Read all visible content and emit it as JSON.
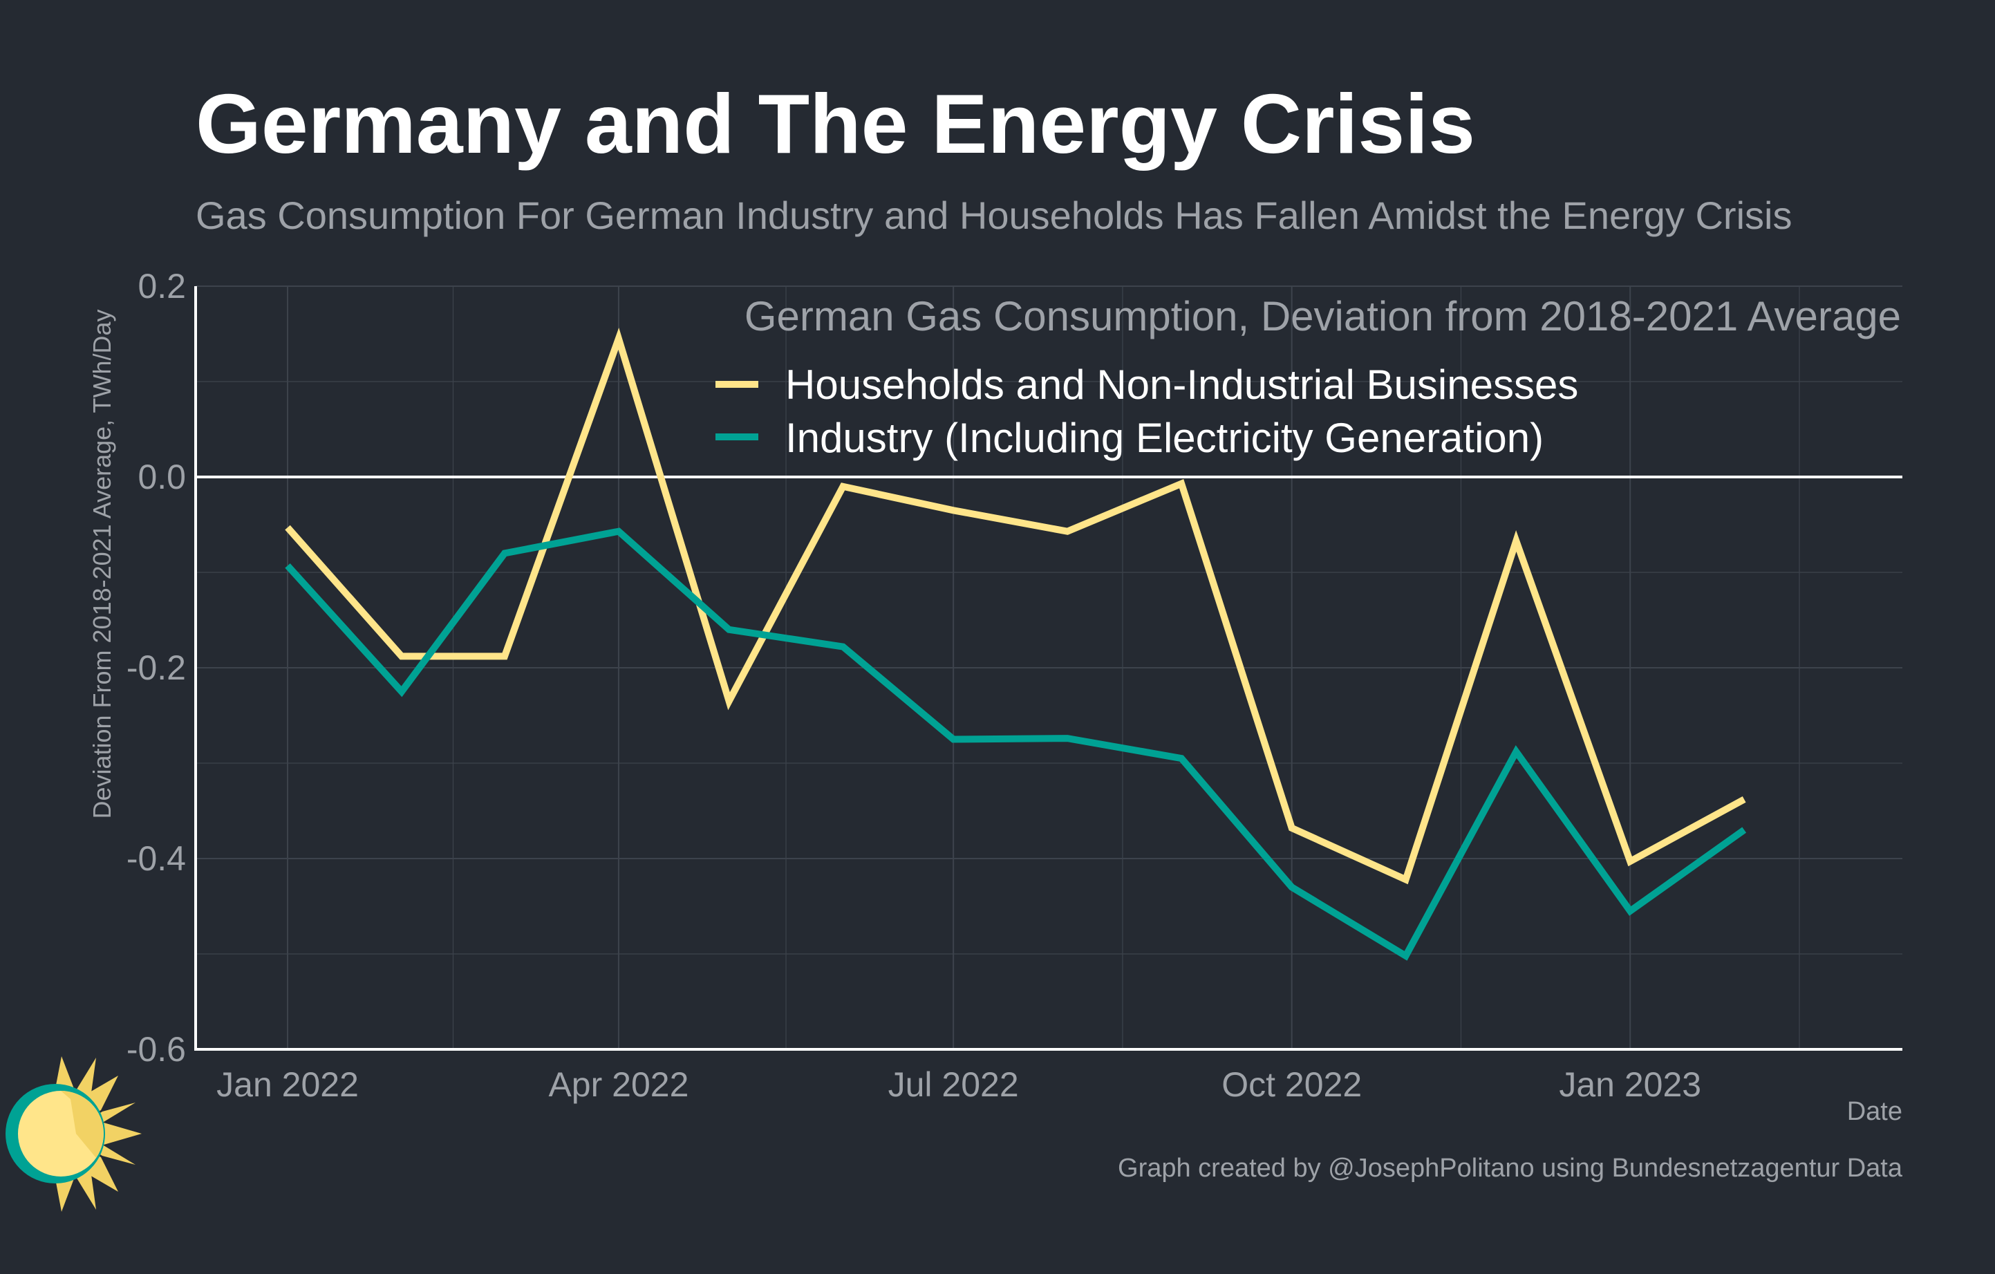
{
  "title": "Germany and The Energy Crisis",
  "subtitle": "Gas Consumption For German Industry and Households Has Fallen Amidst the Energy Crisis",
  "caption": "Graph created by @JosephPolitano using Bundesnetzagentur Data",
  "colors": {
    "background": "#252a32",
    "households": "#ffe58a",
    "industry": "#00a294",
    "zero_line": "#ffffff",
    "grid": "#3d434c"
  },
  "logo_icon": "sun-logo-icon",
  "chart_data": {
    "type": "line",
    "ylabel": "Deviation From 2018-2021 Average, TWh/Day",
    "xlabel": "Date",
    "ylim": [
      -0.6,
      0.2
    ],
    "xlim": [
      "2021-12-07",
      "2023-03-16"
    ],
    "y_ticks": [
      -0.6,
      -0.4,
      -0.2,
      0.0,
      0.2
    ],
    "y_tick_labels": [
      "-0.6",
      "-0.4",
      "-0.2",
      "0.0",
      "0.2"
    ],
    "x_ticks": [
      "2022-01-01",
      "2022-04-01",
      "2022-07-01",
      "2022-10-01",
      "2023-01-01"
    ],
    "x_tick_labels": [
      "Jan 2022",
      "Apr 2022",
      "Jul 2022",
      "Oct 2022",
      "Jan 2023"
    ],
    "grid": true,
    "legend_title": "German Gas Consumption, Deviation from 2018-2021 Average",
    "legend_position": "top-right",
    "x": [
      "2022-01-01",
      "2022-02-01",
      "2022-03-01",
      "2022-04-01",
      "2022-05-01",
      "2022-06-01",
      "2022-07-01",
      "2022-08-01",
      "2022-09-01",
      "2022-10-01",
      "2022-11-01",
      "2022-12-01",
      "2023-01-01",
      "2023-02-01"
    ],
    "series": [
      {
        "name": "Households and Non-Industrial Businesses",
        "color": "#ffe58a",
        "values": [
          -0.053,
          -0.188,
          -0.188,
          0.145,
          -0.235,
          -0.01,
          -0.035,
          -0.057,
          -0.007,
          -0.368,
          -0.422,
          -0.067,
          -0.403,
          -0.338
        ]
      },
      {
        "name": "Industry (Including Electricity Generation)",
        "color": "#00a294",
        "values": [
          -0.093,
          -0.225,
          -0.08,
          -0.057,
          -0.16,
          -0.178,
          -0.275,
          -0.274,
          -0.295,
          -0.43,
          -0.502,
          -0.288,
          -0.455,
          -0.37
        ]
      }
    ]
  }
}
